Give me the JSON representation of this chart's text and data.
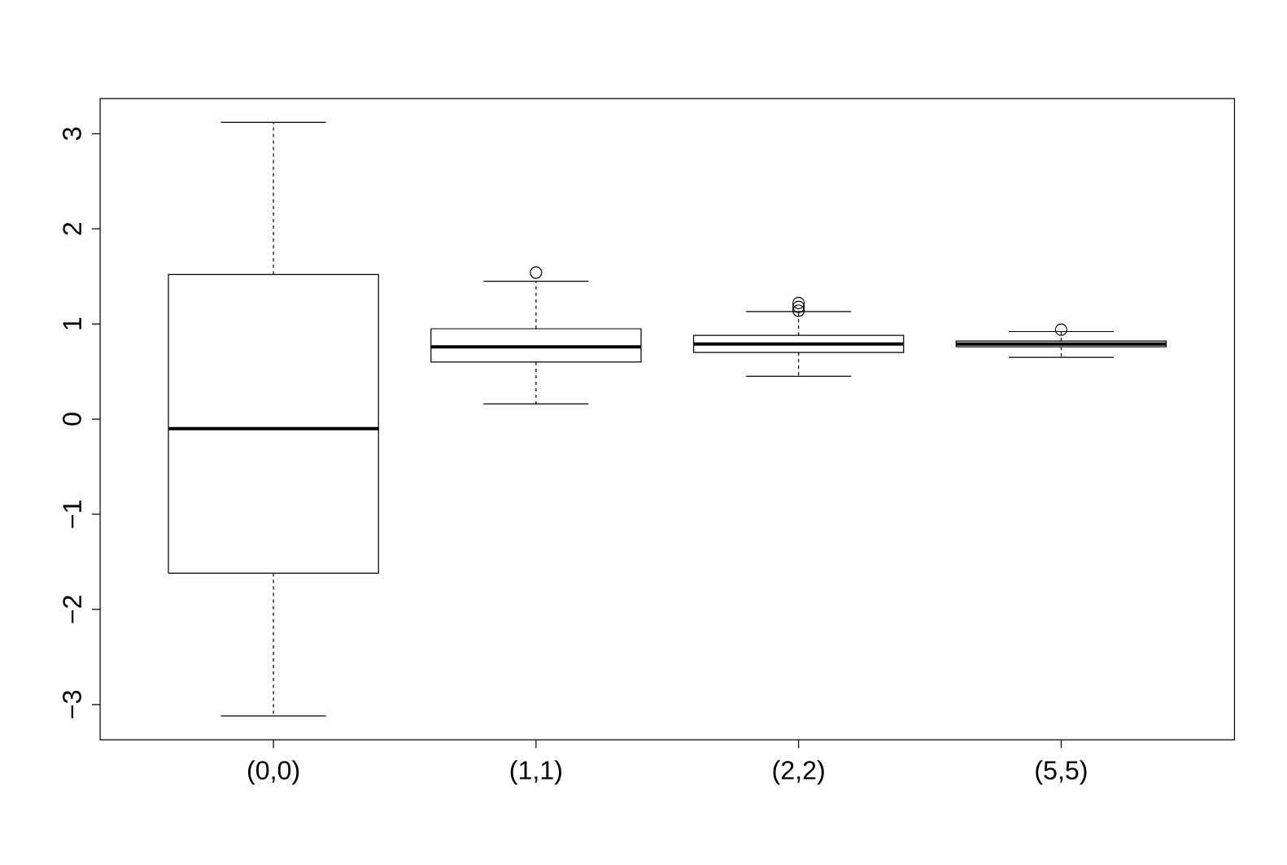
{
  "chart_data": {
    "type": "box",
    "categories": [
      "(0,0)",
      "(1,1)",
      "(2,2)",
      "(5,5)"
    ],
    "boxes": [
      {
        "low": -3.12,
        "q1": -1.62,
        "median": -0.1,
        "q3": 1.52,
        "high": 3.12
      },
      {
        "low": 0.16,
        "q1": 0.6,
        "median": 0.76,
        "q3": 0.95,
        "high": 1.45,
        "outliers": [
          1.54
        ]
      },
      {
        "low": 0.45,
        "q1": 0.7,
        "median": 0.79,
        "q3": 0.88,
        "high": 1.13,
        "outliers": [
          1.14,
          1.18,
          1.22
        ]
      },
      {
        "low": 0.65,
        "q1": 0.76,
        "median": 0.79,
        "q3": 0.82,
        "high": 0.92,
        "outliers": [
          0.94
        ]
      }
    ],
    "ylim": [
      -3.37,
      3.37
    ],
    "yticks": [
      {
        "value": -3,
        "label": "−3"
      },
      {
        "value": -2,
        "label": "−2"
      },
      {
        "value": -1,
        "label": "−1"
      },
      0,
      1,
      2,
      3
    ],
    "color": "#000000",
    "grid": false
  }
}
